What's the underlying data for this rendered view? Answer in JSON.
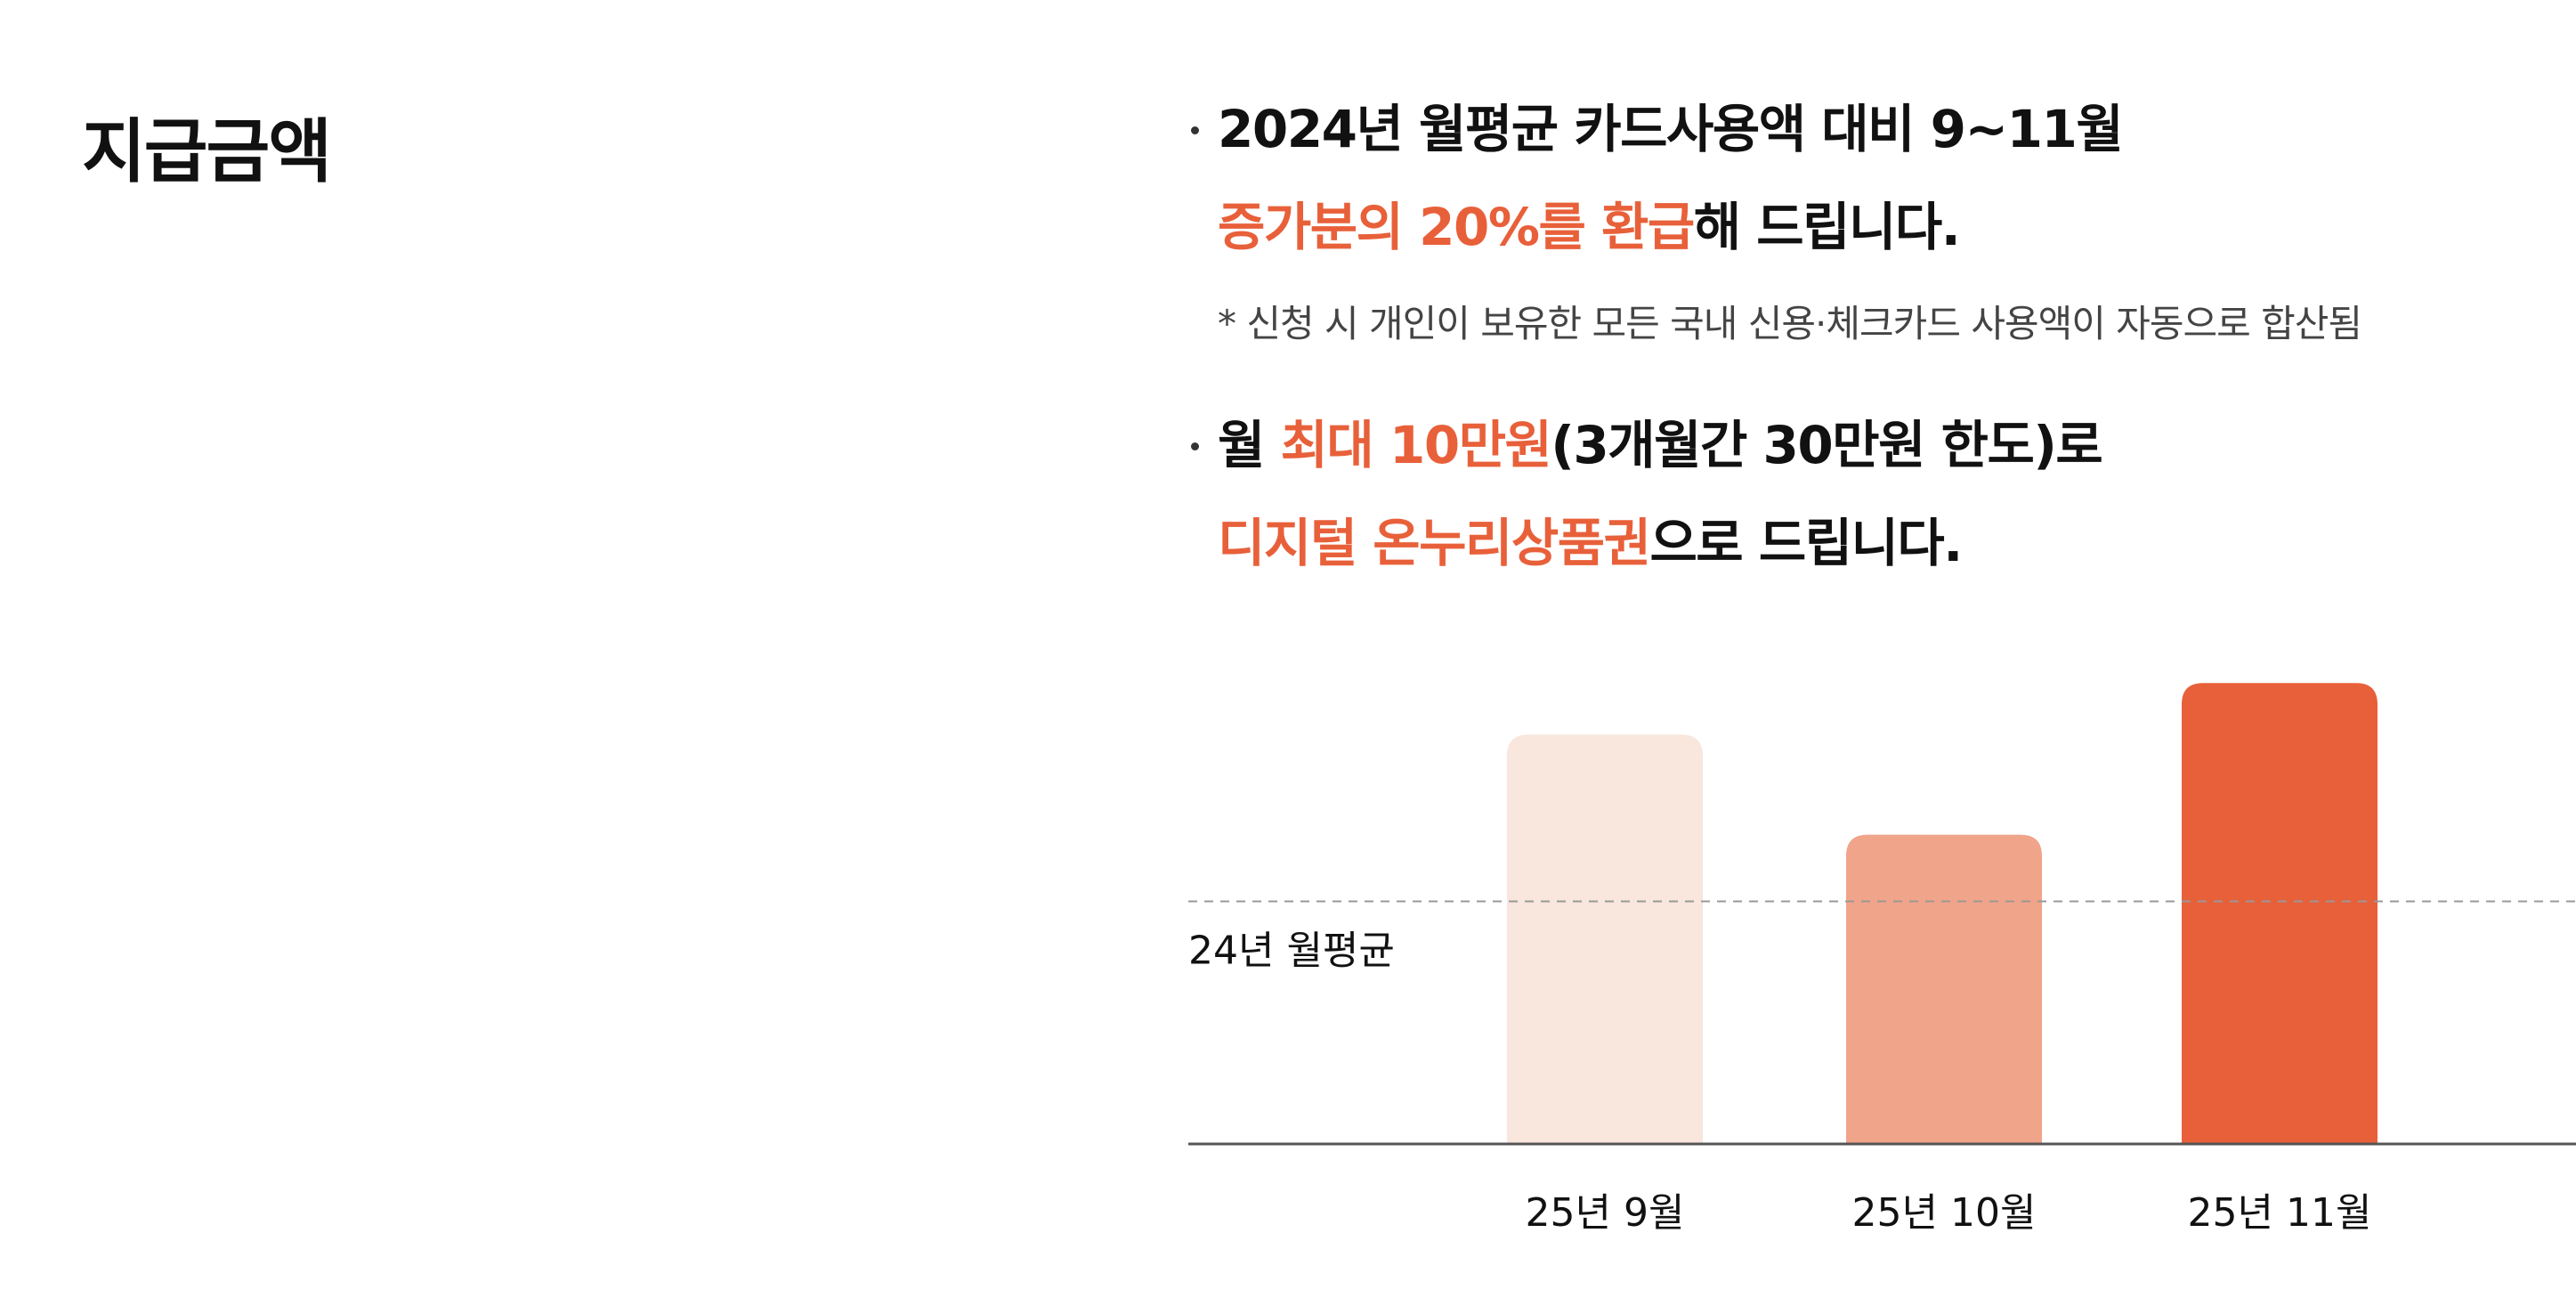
{
  "page": {
    "title": "지급금액",
    "bullet1": {
      "line1": "2024년 월평균 카드사용액 대비 9~11월",
      "line2_accent": "증가분의 20%를 환급",
      "line2_rest": "해 드립니다."
    },
    "note": "* 신청 시 개인이 보유한 모든 국내 신용·체크카드 사용액이 자동으로 합산됨",
    "bullet2": {
      "line1_a": "월 ",
      "line1_accent": "최대 10만원",
      "line1_rest": "(3개월간 30만원 한도)로",
      "line2_accent": "디지털 온누리상품권",
      "line2_rest": "으로 드립니다."
    }
  },
  "colors": {
    "accent": "#e8603a",
    "bar_light": "#f9e6dd",
    "bar_mid": "#f0a489",
    "bar_dark": "#e8603a",
    "baseline": "#555555",
    "dashed": "#999999"
  },
  "chart_data": {
    "type": "bar",
    "categories": [
      "25년 9월",
      "25년 10월",
      "25년 11월"
    ],
    "values": [
      1.35,
      1.02,
      1.52
    ],
    "reference_line": {
      "label": "24년 월평균",
      "value": 0.8
    },
    "ylim": [
      0,
      1.6
    ],
    "title": "",
    "xlabel": "",
    "ylabel": "",
    "grid": false
  }
}
